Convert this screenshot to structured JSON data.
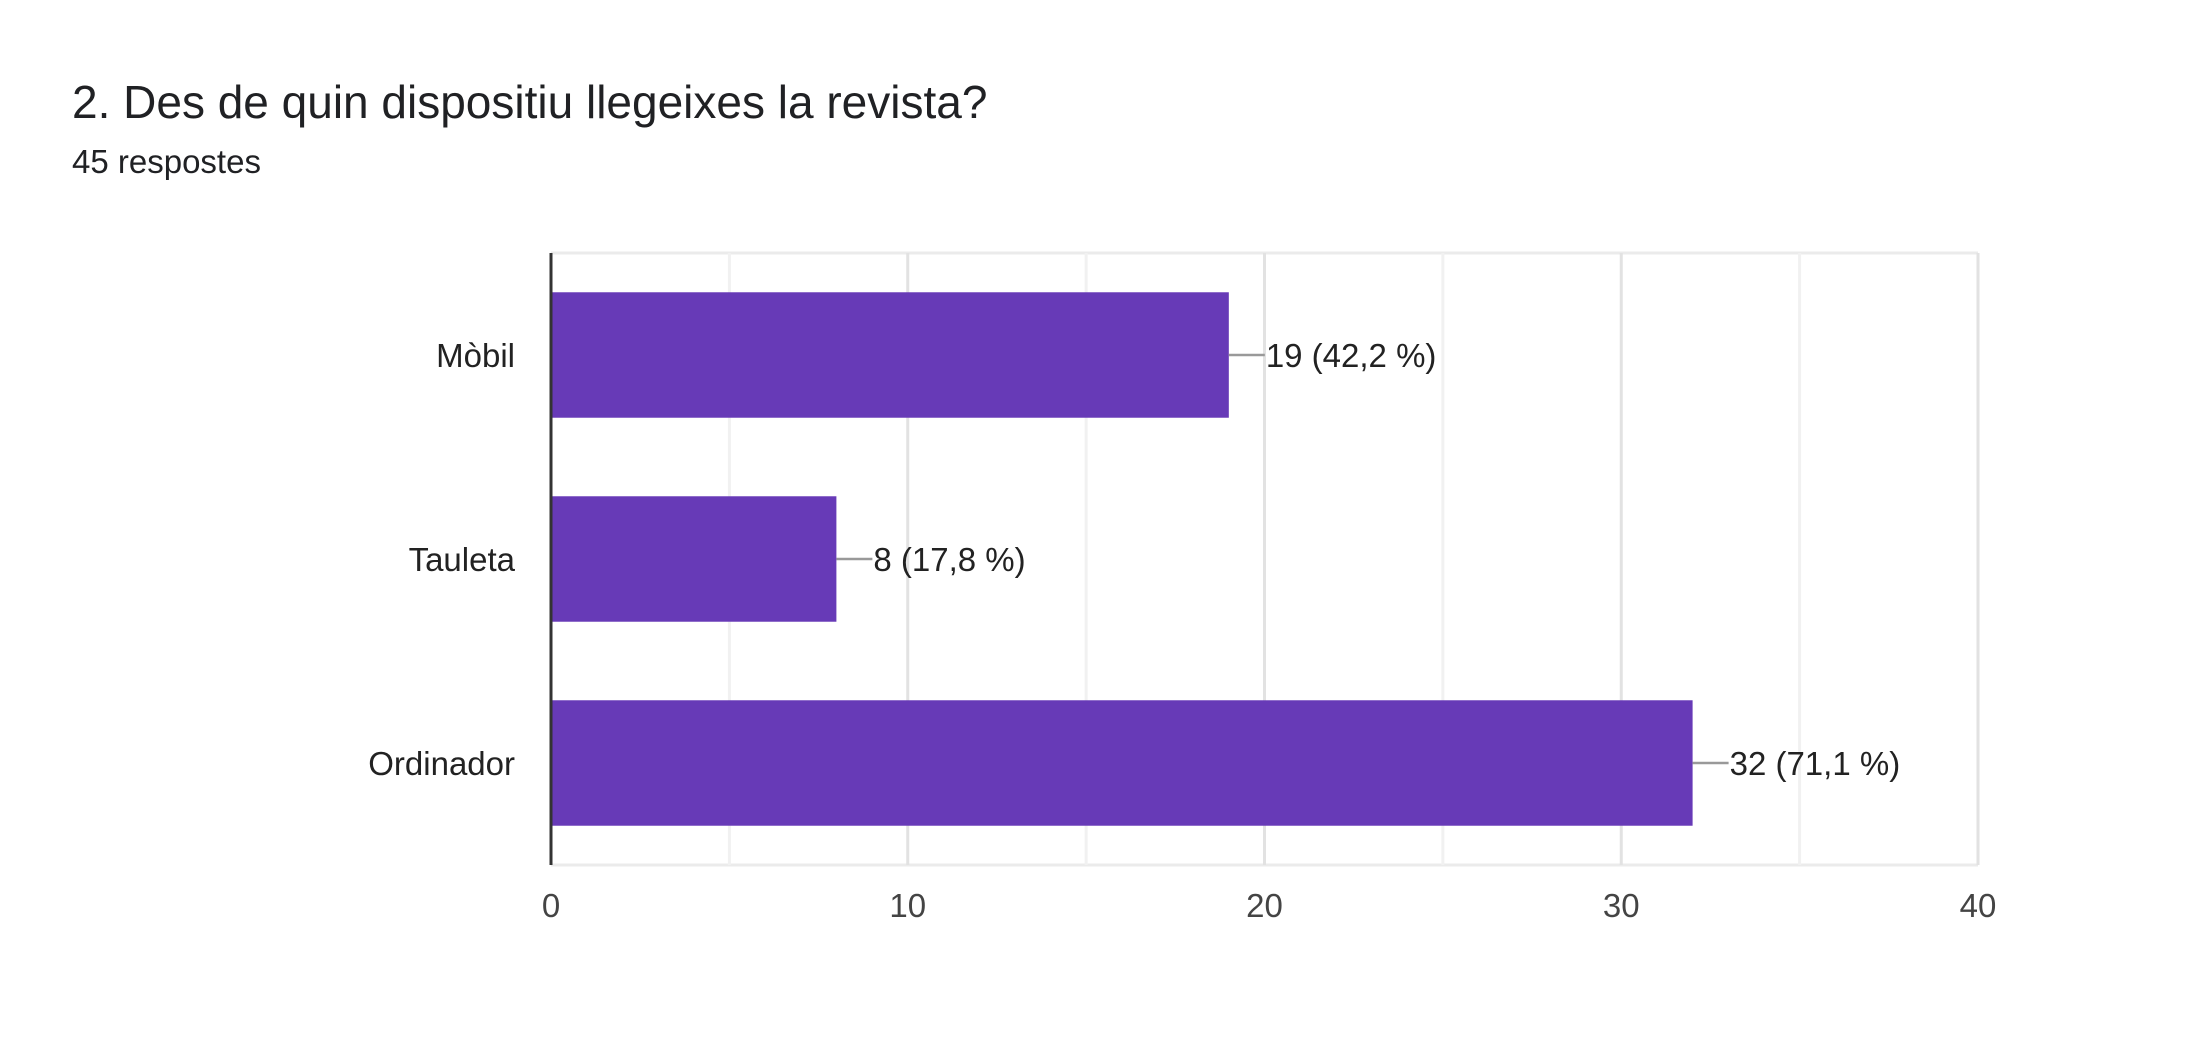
{
  "header": {
    "title": "2. Des de quin dispositiu llegeixes la revista?",
    "responses": "45 respostes"
  },
  "colors": {
    "bar": "#673AB7",
    "grid": "#ebebeb",
    "axis": "#333333",
    "leader": "#999999"
  },
  "chart_data": {
    "type": "bar",
    "orientation": "horizontal",
    "title": "2. Des de quin dispositiu llegeixes la revista?",
    "categories": [
      "Mòbil",
      "Tauleta",
      "Ordinador"
    ],
    "values": [
      19,
      8,
      32
    ],
    "data_labels": [
      "19 (42,2 %)",
      "8 (17,8 %)",
      "32 (71,1 %)"
    ],
    "xlim": [
      0,
      40
    ],
    "xticks": [
      0,
      10,
      20,
      30,
      40
    ],
    "xtick_labels": [
      "0",
      "10",
      "20",
      "30",
      "40"
    ],
    "minor_grid_step": 5,
    "xlabel": "",
    "ylabel": "",
    "grid": true,
    "legend": "none"
  }
}
